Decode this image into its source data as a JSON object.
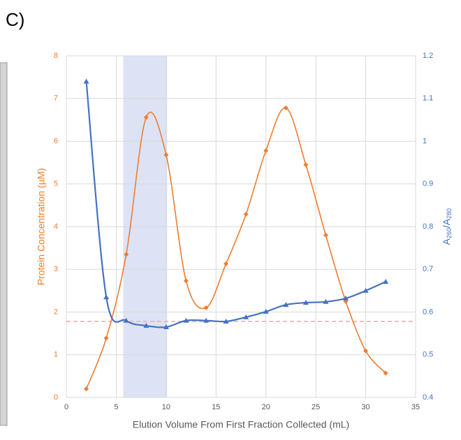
{
  "panel_label": "C)",
  "chart_data": {
    "type": "line",
    "xlabel": "Elution Volume From First Fraction Collected (mL)",
    "ylabel": "Protein Concentration (µM)",
    "y2label": [
      "A",
      "260",
      "/A",
      "280"
    ],
    "x": [
      2,
      4,
      6,
      8,
      10,
      12,
      14,
      16,
      18,
      20,
      22,
      24,
      26,
      28,
      30,
      32
    ],
    "series": [
      {
        "color": "#ED7D31",
        "marker": "diamond",
        "values": [
          0.2,
          1.39,
          3.35,
          6.56,
          5.68,
          2.73,
          2.1,
          3.13,
          4.29,
          5.78,
          6.78,
          5.45,
          3.8,
          2.25,
          1.09,
          0.57
        ]
      },
      {
        "color": "#4472C4",
        "marker": "triangle",
        "axis": "y2",
        "values": [
          1.14,
          0.635,
          0.58,
          0.568,
          0.565,
          0.58,
          0.58,
          0.578,
          0.588,
          0.601,
          0.617,
          0.622,
          0.624,
          0.632,
          0.65,
          0.671
        ]
      }
    ],
    "xlim": [
      0,
      35
    ],
    "xticks": [
      0,
      5,
      10,
      15,
      20,
      25,
      30,
      35
    ],
    "ylim": [
      0,
      8
    ],
    "yticks": [
      0,
      1,
      2,
      3,
      4,
      5,
      6,
      7,
      8
    ],
    "y2lim": [
      0.4,
      1.2
    ],
    "y2ticks": [
      0.4,
      0.5,
      0.6,
      0.7,
      0.8,
      0.9,
      1,
      1.1,
      1.2
    ],
    "grid": true,
    "smooth": true,
    "highlight_xrange": [
      5.7,
      10.1
    ],
    "highlight_color": "#dde3f5",
    "ref_line": {
      "y": 1.78,
      "color": "#f4a6a6"
    }
  }
}
